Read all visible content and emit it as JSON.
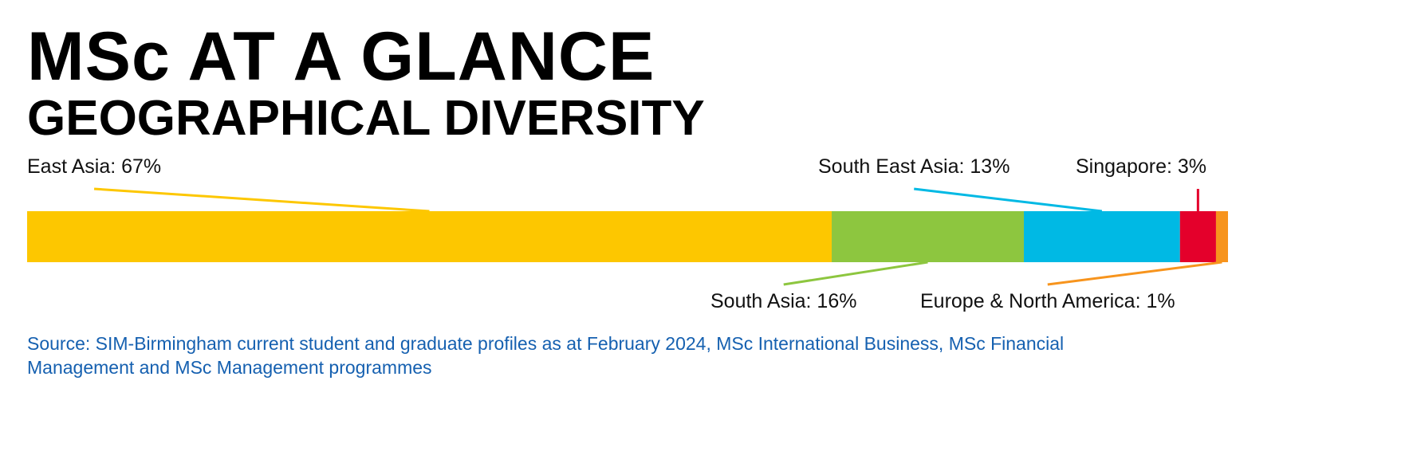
{
  "chart_data": {
    "type": "stacked-bar",
    "title": "MSc AT A GLANCE",
    "subtitle": "GEOGRAPHICAL DIVERSITY",
    "values": [
      67,
      16,
      13,
      3,
      1
    ],
    "value_labels": [
      "East Asia: 67%",
      "South Asia: 16%",
      "South East Asia: 13%",
      "Singapore: 3%",
      "Europe & North America: 1%"
    ],
    "colors": [
      "#fdc700",
      "#8dc63f",
      "#00b9e4",
      "#e4002b",
      "#f7941d"
    ],
    "source": "Source: SIM-Birmingham current student and graduate profiles as at February 2024, MSc International Business, MSc Financial Management and MSc Management programmes"
  }
}
